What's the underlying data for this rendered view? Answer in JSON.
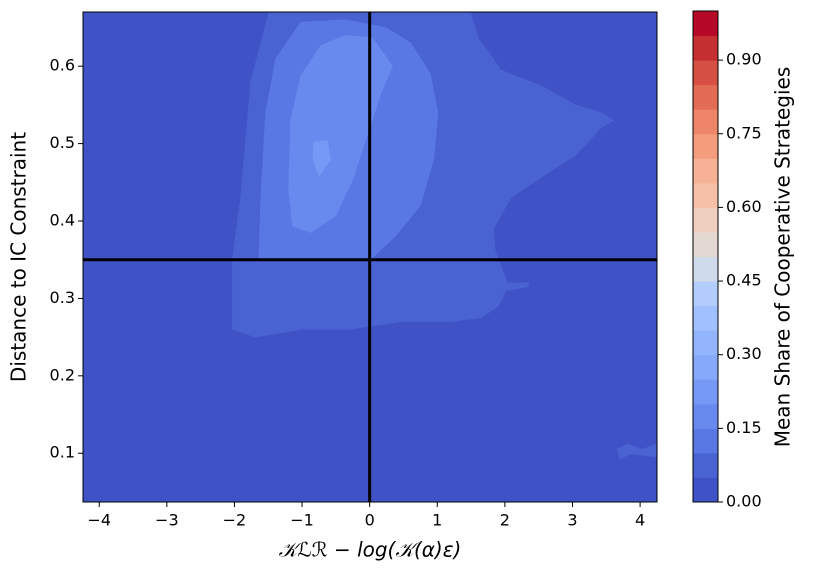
{
  "chart_data": {
    "type": "contour",
    "xlabel": "𝒦ℒℛ − log(𝒦(α)ε)",
    "ylabel": "Distance to IC Constraint",
    "colorbar_label": "Mean Share of Cooperative Strategies",
    "xlim": [
      -4.24,
      4.25
    ],
    "ylim": [
      0.037,
      0.67
    ],
    "xticks": [
      {
        "value": -4,
        "label": "−4"
      },
      {
        "value": -3,
        "label": "−3"
      },
      {
        "value": -2,
        "label": "−2"
      },
      {
        "value": -1,
        "label": "−1"
      },
      0,
      1,
      2,
      3,
      4
    ],
    "yticks": [
      0.1,
      0.2,
      0.3,
      0.4,
      0.5,
      0.6
    ],
    "clim": [
      0,
      1
    ],
    "cticks": [
      {
        "value": 0,
        "label": "0.00"
      },
      0.15,
      {
        "value": 0.3,
        "label": "0.30"
      },
      0.45,
      {
        "value": 0.6,
        "label": "0.60"
      },
      0.75,
      {
        "value": 0.9,
        "label": "0.90"
      }
    ],
    "levels": [
      0,
      0.05,
      0.1,
      0.15,
      0.2,
      0.25,
      0.3,
      0.35,
      0.4,
      0.45,
      0.5,
      0.55,
      0.6,
      0.65,
      0.7,
      0.75,
      0.8,
      0.85,
      0.9,
      0.95,
      1.0
    ],
    "colors": [
      "#4053c6",
      "#4a63d3",
      "#5a78e4",
      "#6889ed",
      "#7699f6",
      "#86a9fc",
      "#93b5fe",
      "#a1c0ff",
      "#b2ccfb",
      "#cfdaea",
      "#e4d9d2",
      "#efcfbf",
      "#f5c0a7",
      "#f7b194",
      "#f59c7d",
      "#ee8468",
      "#e36c55",
      "#d55042",
      "#c43032",
      "#b50927"
    ],
    "regions": [
      {
        "level": 0.05,
        "points": [
          [
            -1.49,
            0.67
          ],
          [
            -1.76,
            0.58
          ],
          [
            -1.91,
            0.43
          ],
          [
            -2.03,
            0.35
          ],
          [
            -2.03,
            0.26
          ],
          [
            -1.69,
            0.25
          ],
          [
            -1.02,
            0.26
          ],
          [
            -0.28,
            0.26
          ],
          [
            0.46,
            0.27
          ],
          [
            1.2,
            0.27
          ],
          [
            1.64,
            0.275
          ],
          [
            1.91,
            0.29
          ],
          [
            2.01,
            0.31
          ],
          [
            2.35,
            0.315
          ],
          [
            2.35,
            0.32
          ],
          [
            2.04,
            0.32
          ],
          [
            1.86,
            0.36
          ],
          [
            1.83,
            0.39
          ],
          [
            2.09,
            0.43
          ],
          [
            2.6,
            0.46
          ],
          [
            3.05,
            0.485
          ],
          [
            3.42,
            0.52
          ],
          [
            3.61,
            0.53
          ],
          [
            3.42,
            0.54
          ],
          [
            3.05,
            0.55
          ],
          [
            2.53,
            0.575
          ],
          [
            1.94,
            0.595
          ],
          [
            1.79,
            0.615
          ],
          [
            1.61,
            0.635
          ],
          [
            1.49,
            0.67
          ]
        ]
      },
      {
        "level": 0.05,
        "points": [
          [
            3.66,
            0.105
          ],
          [
            3.81,
            0.112
          ],
          [
            4.03,
            0.105
          ],
          [
            4.25,
            0.112
          ],
          [
            4.25,
            0.095
          ],
          [
            3.85,
            0.099
          ],
          [
            3.7,
            0.092
          ]
        ]
      },
      {
        "level": 0.1,
        "points": [
          [
            -1.02,
            0.657
          ],
          [
            -1.39,
            0.61
          ],
          [
            -1.54,
            0.54
          ],
          [
            -1.61,
            0.43
          ],
          [
            -1.64,
            0.35
          ],
          [
            -0.72,
            0.35
          ],
          [
            0.01,
            0.35
          ],
          [
            0.38,
            0.38
          ],
          [
            0.75,
            0.42
          ],
          [
            0.95,
            0.48
          ],
          [
            1.01,
            0.54
          ],
          [
            0.9,
            0.59
          ],
          [
            0.61,
            0.63
          ],
          [
            0.24,
            0.65
          ],
          [
            -0.36,
            0.66
          ]
        ]
      },
      {
        "level": 0.15,
        "points": [
          [
            -0.72,
            0.627
          ],
          [
            -0.36,
            0.64
          ],
          [
            0.04,
            0.637
          ],
          [
            0.34,
            0.6
          ],
          [
            0.16,
            0.563
          ],
          [
            -0.06,
            0.504
          ],
          [
            -0.25,
            0.453
          ],
          [
            -0.5,
            0.407
          ],
          [
            -0.87,
            0.385
          ],
          [
            -1.14,
            0.393
          ],
          [
            -1.2,
            0.44
          ],
          [
            -1.17,
            0.53
          ],
          [
            -1.02,
            0.588
          ]
        ]
      },
      {
        "level": 0.2,
        "points": [
          [
            -0.83,
            0.502
          ],
          [
            -0.62,
            0.504
          ],
          [
            -0.58,
            0.479
          ],
          [
            -0.75,
            0.458
          ],
          [
            -0.84,
            0.479
          ]
        ]
      }
    ],
    "reference_lines": {
      "x": 0,
      "y": 0.35
    }
  }
}
